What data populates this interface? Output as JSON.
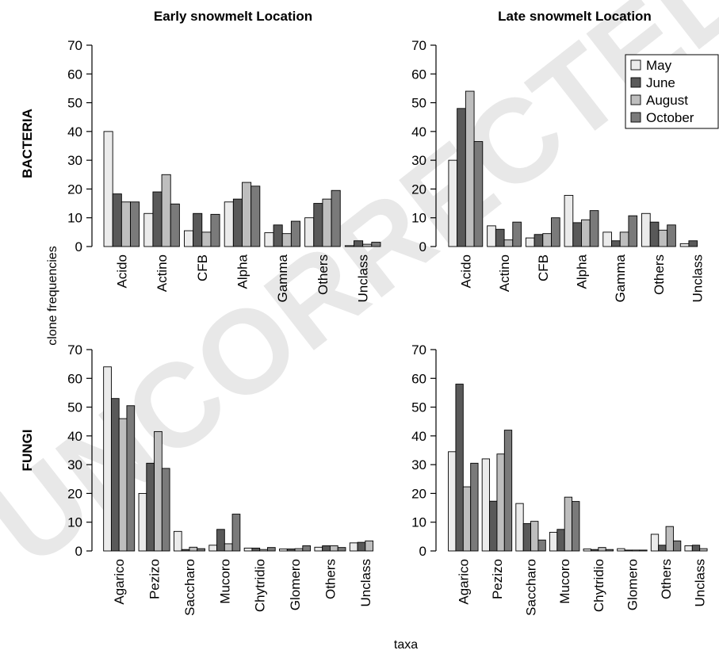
{
  "figure": {
    "col_titles": [
      "Early snowmelt Location",
      "Late snowmelt Location"
    ],
    "row_titles": [
      "BACTERIA",
      "FUNGI"
    ],
    "ylabel": "clone frequencies",
    "xlabel": "taxa",
    "watermark": "UNCORRECTED PROOF",
    "colors": {
      "May": "#ebebeb",
      "June": "#595959",
      "August": "#bebebe",
      "October": "#7a7a7a"
    }
  },
  "chart_data": [
    {
      "type": "bar",
      "panel": "bacteria-early",
      "categories": [
        "Acido",
        "Actino",
        "CFB",
        "Alpha",
        "Gamma",
        "Others",
        "Unclass"
      ],
      "ylim": [
        0,
        70
      ],
      "yticks": [
        0,
        10,
        20,
        30,
        40,
        50,
        60,
        70
      ],
      "legend": null,
      "series": [
        {
          "name": "May",
          "values": [
            40,
            11.5,
            5.5,
            15.5,
            4.8,
            10,
            0.3
          ]
        },
        {
          "name": "June",
          "values": [
            18.3,
            19,
            11.5,
            16.5,
            7.5,
            15,
            2
          ]
        },
        {
          "name": "August",
          "values": [
            15.5,
            25,
            5,
            22.3,
            4.5,
            16.5,
            0.8
          ]
        },
        {
          "name": "October",
          "values": [
            15.5,
            14.8,
            11.2,
            21,
            8.8,
            19.5,
            1.5
          ]
        }
      ]
    },
    {
      "type": "bar",
      "panel": "bacteria-late",
      "categories": [
        "Acido",
        "Actino",
        "CFB",
        "Alpha",
        "Gamma",
        "Others",
        "Unclass"
      ],
      "ylim": [
        0,
        70
      ],
      "yticks": [
        0,
        10,
        20,
        30,
        40,
        50,
        60,
        70
      ],
      "legend": "top-right",
      "series": [
        {
          "name": "May",
          "values": [
            30,
            7.2,
            3,
            17.8,
            5,
            11.5,
            1
          ]
        },
        {
          "name": "June",
          "values": [
            48,
            6,
            4.2,
            8.3,
            2,
            8.5,
            2
          ]
        },
        {
          "name": "August",
          "values": [
            54,
            2.3,
            4.5,
            9.3,
            5,
            5.7,
            0
          ]
        },
        {
          "name": "October",
          "values": [
            36.5,
            8.5,
            10,
            12.5,
            10.7,
            7.5,
            0
          ]
        }
      ]
    },
    {
      "type": "bar",
      "panel": "fungi-early",
      "categories": [
        "Agarico",
        "Pezizo",
        "Saccharo",
        "Mucoro",
        "Chytridio",
        "Glomero",
        "Others",
        "Unclass"
      ],
      "ylim": [
        0,
        70
      ],
      "yticks": [
        0,
        10,
        20,
        30,
        40,
        50,
        60,
        70
      ],
      "legend": null,
      "series": [
        {
          "name": "May",
          "values": [
            64,
            20,
            6.8,
            2,
            1,
            0.7,
            1.3,
            2.8
          ]
        },
        {
          "name": "June",
          "values": [
            53,
            30.5,
            0.5,
            7.5,
            1,
            0.7,
            1.8,
            3
          ]
        },
        {
          "name": "August",
          "values": [
            46,
            41.5,
            1.3,
            2.5,
            0.5,
            0.8,
            1.8,
            3.5
          ]
        },
        {
          "name": "October",
          "values": [
            50.5,
            28.7,
            0.8,
            12.8,
            1.2,
            1.8,
            1.2,
            0
          ]
        }
      ]
    },
    {
      "type": "bar",
      "panel": "fungi-late",
      "categories": [
        "Agarico",
        "Pezizo",
        "Saccharo",
        "Mucoro",
        "Chytridio",
        "Glomero",
        "Others",
        "Unclass"
      ],
      "ylim": [
        0,
        70
      ],
      "yticks": [
        0,
        10,
        20,
        30,
        40,
        50,
        60,
        70
      ],
      "legend": null,
      "series": [
        {
          "name": "May",
          "values": [
            34.5,
            32,
            16.5,
            6.5,
            0.7,
            0.8,
            5.8,
            1.8
          ]
        },
        {
          "name": "June",
          "values": [
            58,
            17.3,
            9.5,
            7.5,
            0.5,
            0.3,
            2,
            2
          ]
        },
        {
          "name": "August",
          "values": [
            22.3,
            33.7,
            10.3,
            18.7,
            1.2,
            0.3,
            8.5,
            0.8
          ]
        },
        {
          "name": "October",
          "values": [
            30.5,
            42,
            3.8,
            17.2,
            0.5,
            0.3,
            3.5,
            0
          ]
        }
      ]
    }
  ]
}
